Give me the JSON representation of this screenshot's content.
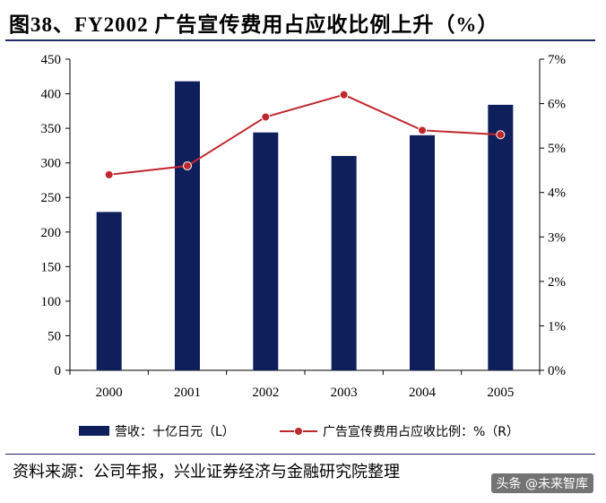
{
  "header": {
    "title": "图38、FY2002 广告宣传费用占应收比例上升（%）"
  },
  "chart_data": {
    "type": "bar",
    "categories": [
      "2000",
      "2001",
      "2002",
      "2003",
      "2004",
      "2005"
    ],
    "series": [
      {
        "name": "营收：十亿日元（L）",
        "type": "bar",
        "axis": "left",
        "color": "#0f1f5c",
        "values": [
          229,
          418,
          344,
          310,
          340,
          384
        ]
      },
      {
        "name": "广告宣传费用占应收比例：%（R）",
        "type": "line",
        "axis": "right",
        "color": "#c0272d",
        "values": [
          4.4,
          4.6,
          5.7,
          6.2,
          5.4,
          5.3
        ]
      }
    ],
    "y_left": {
      "lim": [
        0,
        450
      ],
      "ticks": [
        "0",
        "50",
        "100",
        "150",
        "200",
        "250",
        "300",
        "350",
        "400",
        "450"
      ]
    },
    "y_right": {
      "lim": [
        0,
        7
      ],
      "ticks": [
        "0%",
        "1%",
        "2%",
        "3%",
        "4%",
        "5%",
        "6%",
        "7%"
      ]
    },
    "grid": false,
    "legend_position": "bottom"
  },
  "footer": {
    "source": "资料来源：公司年报，兴业证券经济与金融研究院整理",
    "watermark": "头条 @未来智库"
  }
}
